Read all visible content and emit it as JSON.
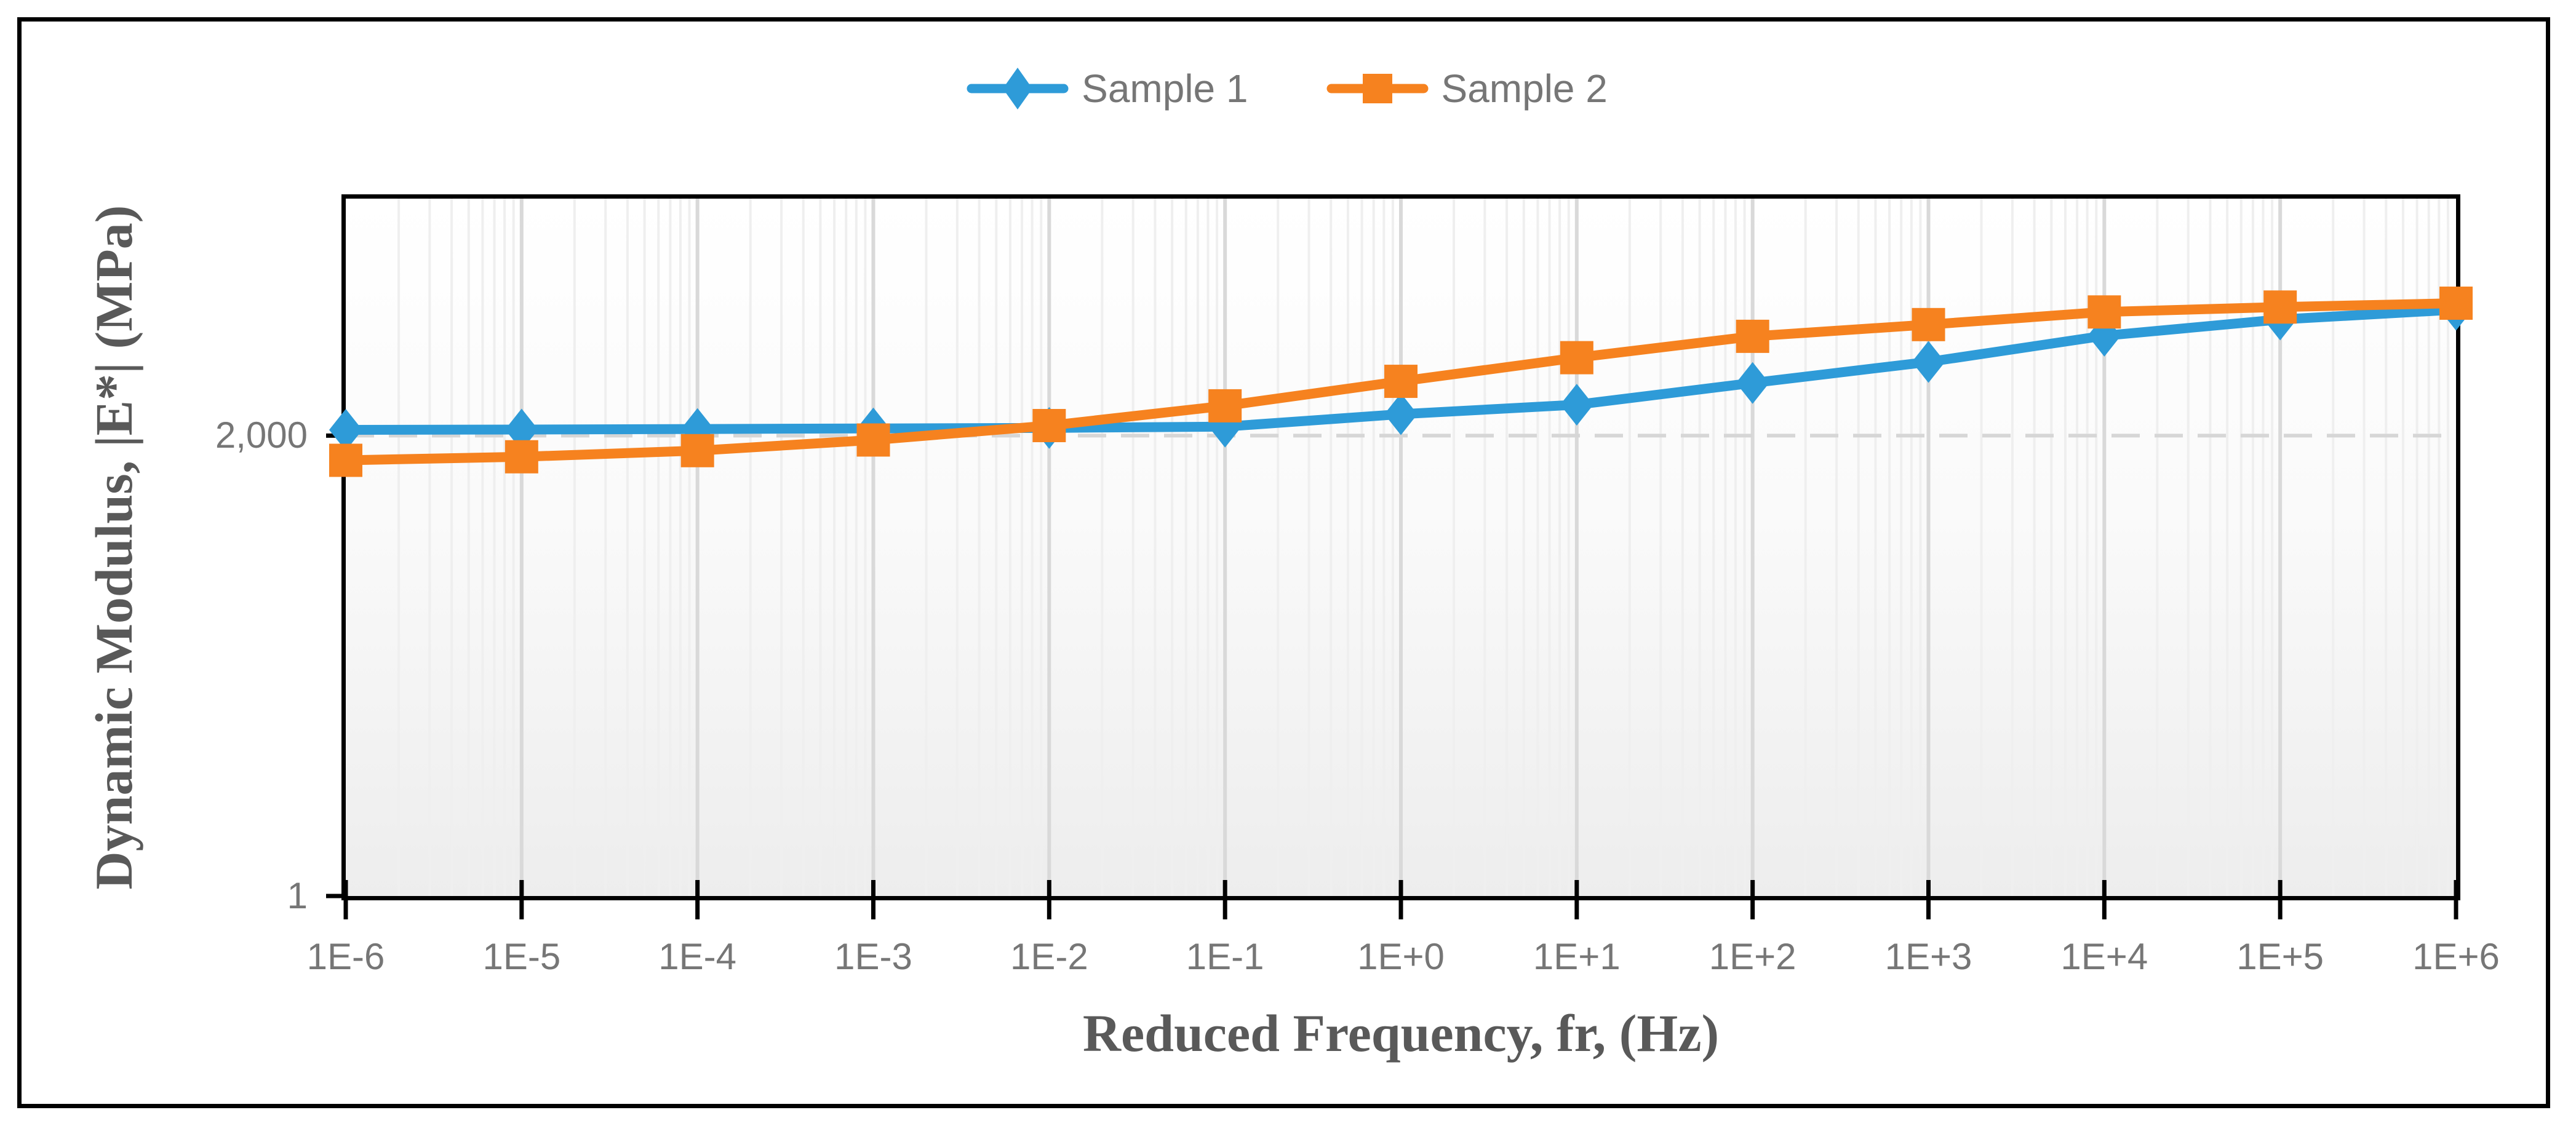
{
  "page": {
    "background_color": "#FFFFFF",
    "frame_border_color": "#000000"
  },
  "legend": {
    "text_color": "#767676",
    "items": [
      {
        "label": "Sample 1",
        "color": "#2E9BD8",
        "marker": "diamond"
      },
      {
        "label": "Sample 2",
        "color": "#F6821F",
        "marker": "square"
      }
    ]
  },
  "chart_data": {
    "type": "line",
    "x_scale": "log",
    "y_scale": "log",
    "title": "",
    "xlabel": "Reduced Frequency, fr, (Hz)",
    "ylabel": "Dynamic Modulus, |E*| (MPa)",
    "xlim": [
      1e-06,
      1000000.0
    ],
    "ylim": [
      1,
      100000
    ],
    "x_values": [
      1e-06,
      1e-05,
      0.0001,
      0.001,
      0.01,
      0.1,
      1.0,
      10.0,
      100.0,
      1000.0,
      10000.0,
      100000.0,
      1000000.0
    ],
    "x_tick_labels": [
      "1E-6",
      "1E-5",
      "1E-4",
      "1E-3",
      "1E-2",
      "1E-1",
      "1E+0",
      "1E+1",
      "1E+2",
      "1E+3",
      "1E+4",
      "1E+5",
      "1E+6"
    ],
    "y_axis": {
      "tick_values": [
        1,
        2000
      ],
      "tick_labels": [
        "1",
        "2,000"
      ],
      "gridline_value": 2000
    },
    "series": [
      {
        "name": "Sample 1",
        "color": "#2E9BD8",
        "marker": "diamond",
        "values": [
          2200,
          2210,
          2230,
          2250,
          2270,
          2320,
          2850,
          3330,
          4770,
          6750,
          10400,
          13600,
          16000
        ]
      },
      {
        "name": "Sample 2",
        "color": "#F6821F",
        "marker": "square",
        "values": [
          1330,
          1410,
          1560,
          1860,
          2360,
          3270,
          4900,
          7240,
          10300,
          12500,
          15400,
          16700,
          17800
        ]
      }
    ],
    "grid": {
      "major_color": "#D9D9D9",
      "minor_color": "#EFEFEF",
      "value_line_color": "#D6D6D6",
      "axis_color": "#000000"
    },
    "legend_position": "top"
  }
}
